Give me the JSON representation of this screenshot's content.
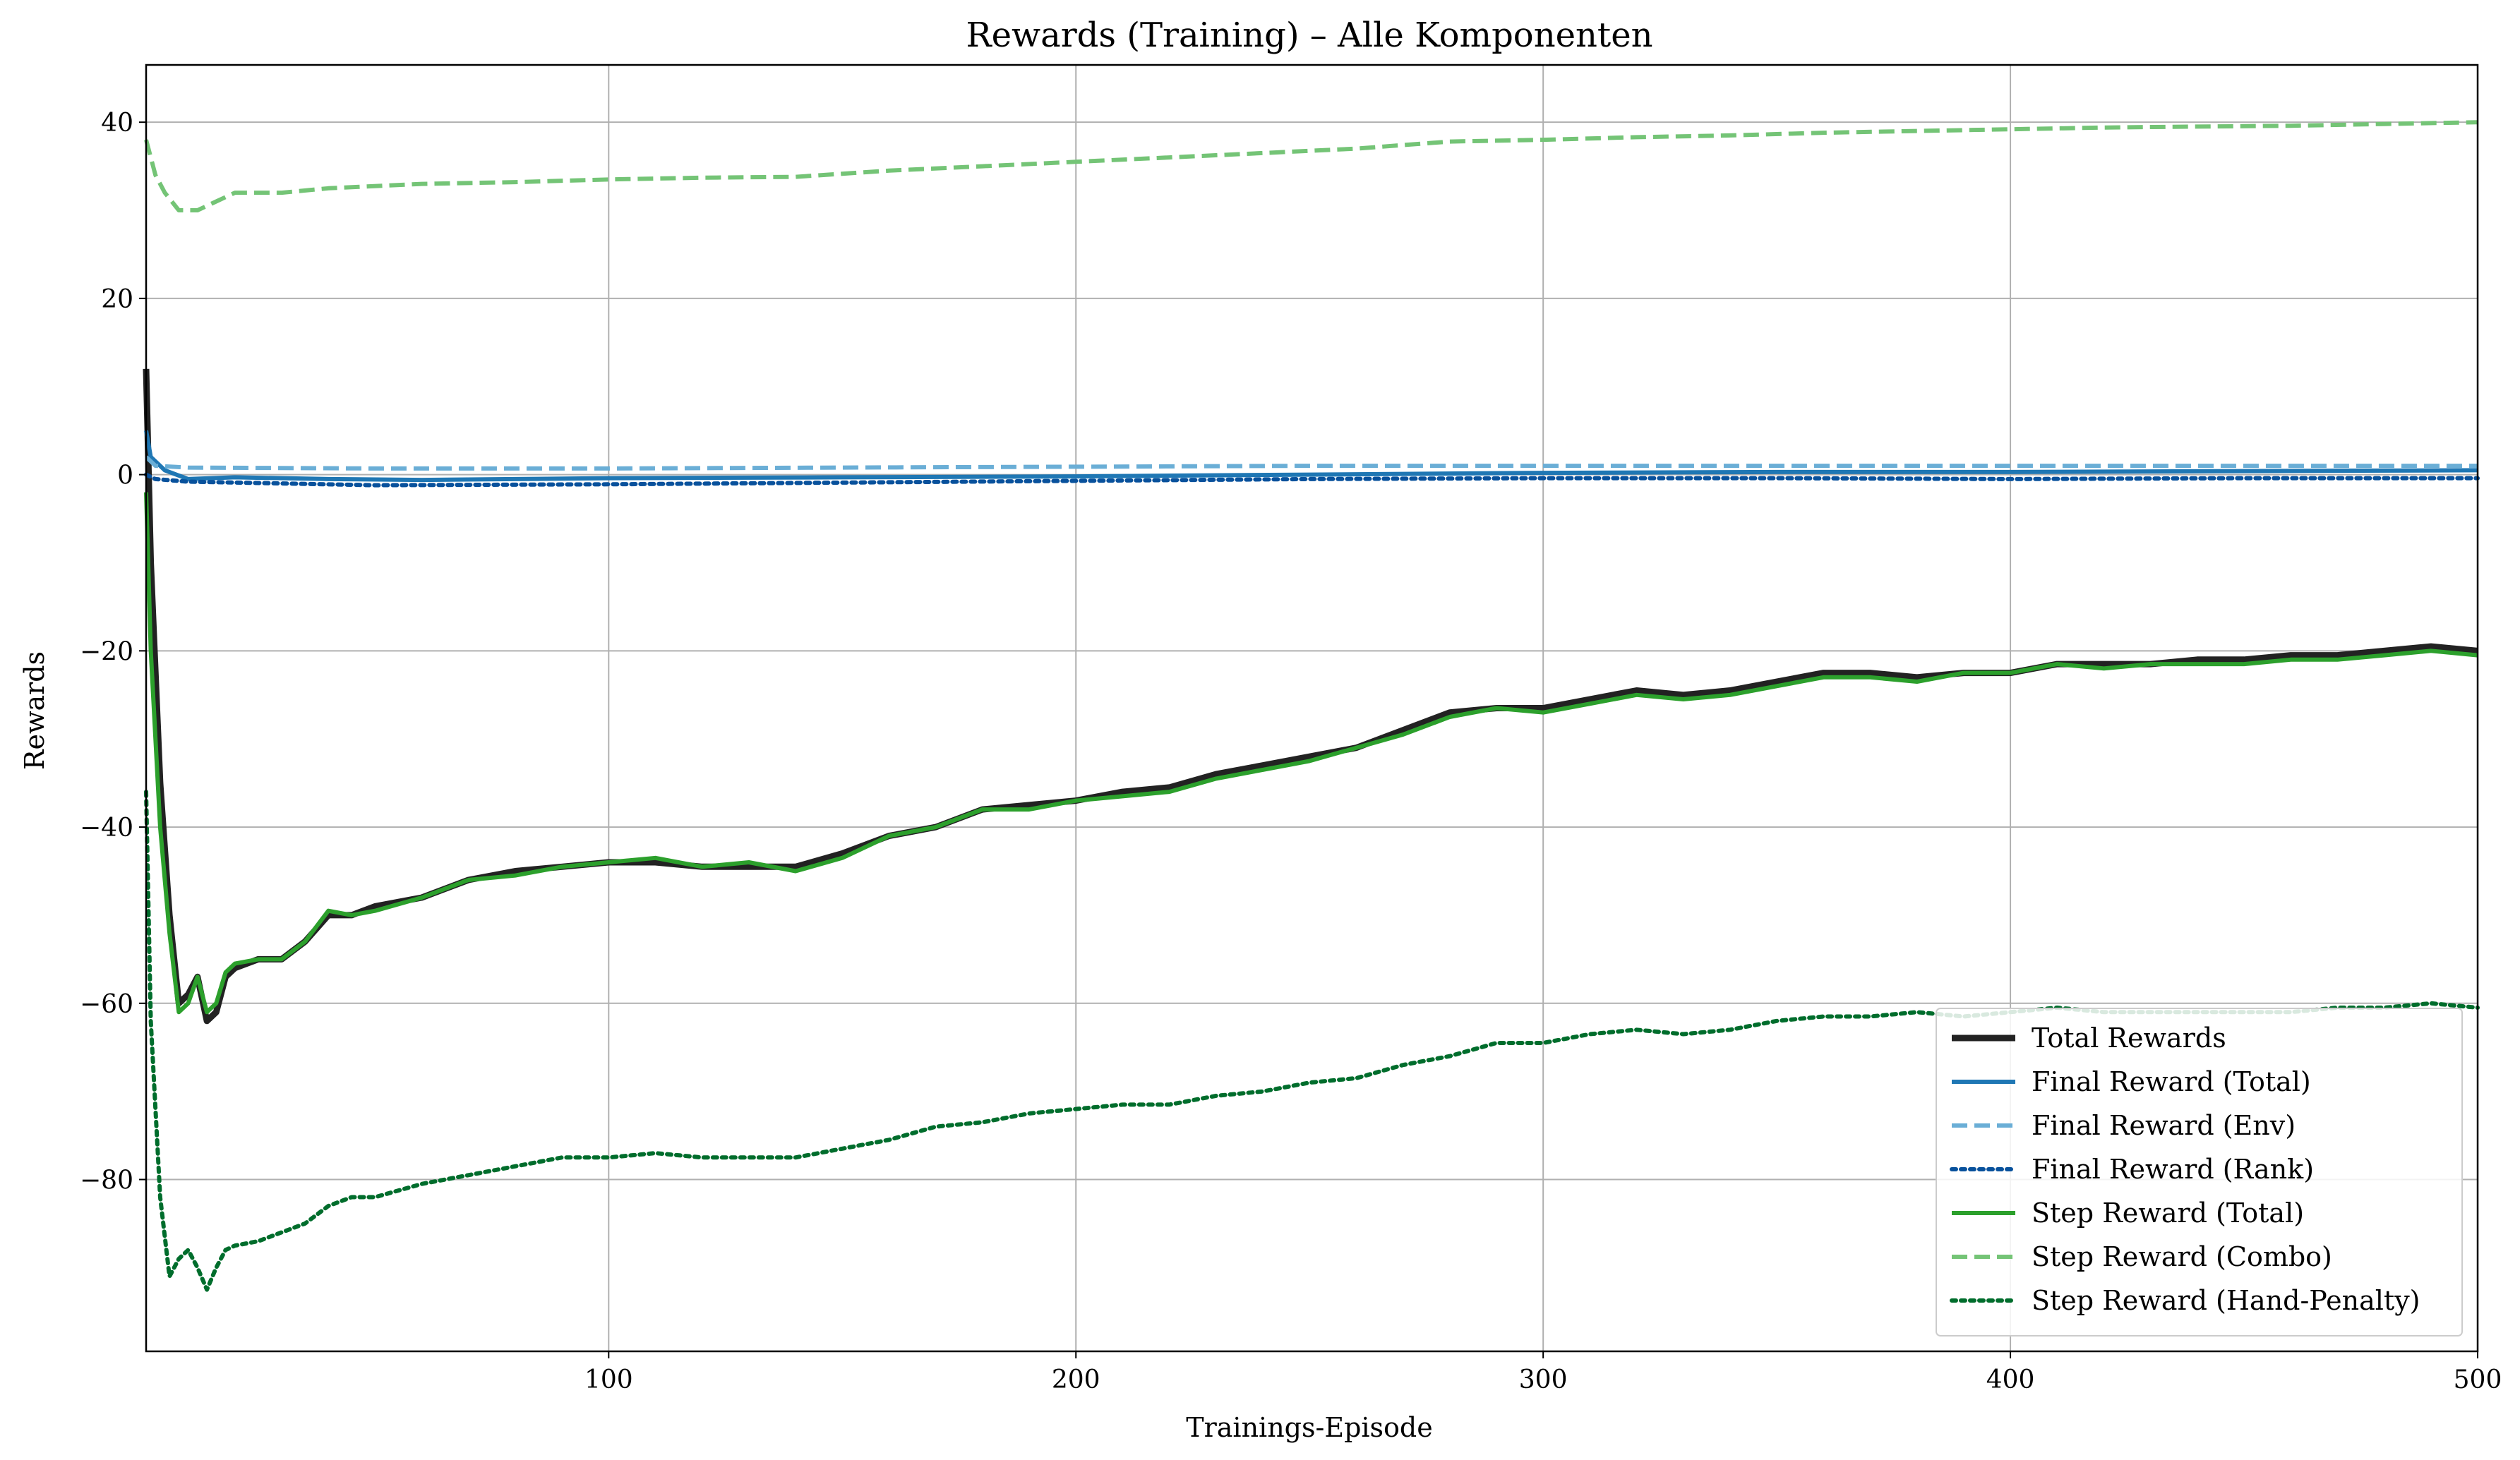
{
  "chart_data": {
    "type": "line",
    "title": "Rewards (Training) – Alle Komponenten",
    "xlabel": "Trainings-Episode",
    "ylabel": "Rewards",
    "xlim": [
      1,
      500
    ],
    "ylim": [
      -99.5,
      46.5
    ],
    "xticks": [
      100,
      200,
      300,
      400,
      500
    ],
    "yticks": [
      -80,
      -60,
      -40,
      -20,
      0,
      20,
      40
    ],
    "grid": true,
    "legend_position": "lower-right",
    "series": [
      {
        "name": "Total Rewards",
        "color": "#222222",
        "style": "solid",
        "width": "thick",
        "x": [
          1,
          2,
          4,
          6,
          8,
          10,
          12,
          14,
          16,
          18,
          20,
          25,
          30,
          35,
          40,
          45,
          50,
          60,
          70,
          80,
          90,
          100,
          110,
          120,
          130,
          140,
          150,
          160,
          170,
          180,
          190,
          200,
          210,
          220,
          230,
          240,
          250,
          260,
          270,
          280,
          290,
          300,
          310,
          320,
          330,
          340,
          350,
          360,
          370,
          380,
          390,
          400,
          410,
          420,
          430,
          440,
          450,
          460,
          470,
          480,
          490,
          500
        ],
        "values": [
          12,
          -10,
          -35,
          -50,
          -60,
          -59,
          -57,
          -62,
          -61,
          -57,
          -56,
          -55,
          -55,
          -53,
          -50,
          -50,
          -49,
          -48,
          -46,
          -45,
          -44.5,
          -44,
          -44,
          -44.5,
          -44.5,
          -44.5,
          -43,
          -41,
          -40,
          -38,
          -37.5,
          -37,
          -36,
          -35.5,
          -34,
          -33,
          -32,
          -31,
          -29,
          -27,
          -26.5,
          -26.5,
          -25.5,
          -24.5,
          -25,
          -24.5,
          -23.5,
          -22.5,
          -22.5,
          -23,
          -22.5,
          -22.5,
          -21.5,
          -21.5,
          -21.5,
          -21,
          -21,
          -20.5,
          -20.5,
          -20,
          -19.5,
          -20
        ]
      },
      {
        "name": "Final Reward (Total)",
        "color": "#1f77b4",
        "style": "solid",
        "width": "medium",
        "x": [
          1,
          2,
          5,
          10,
          20,
          40,
          60,
          80,
          100,
          150,
          200,
          250,
          300,
          350,
          400,
          450,
          500
        ],
        "values": [
          5,
          2,
          0.5,
          -0.5,
          -0.3,
          -0.5,
          -0.6,
          -0.5,
          -0.4,
          -0.3,
          -0.2,
          0,
          0.2,
          0.3,
          0.3,
          0.4,
          0.5
        ]
      },
      {
        "name": "Final Reward (Env)",
        "color": "#6aaed6",
        "style": "dashed",
        "width": "medium",
        "x": [
          1,
          3,
          10,
          50,
          100,
          150,
          200,
          250,
          300,
          350,
          400,
          450,
          500
        ],
        "values": [
          2,
          1,
          0.8,
          0.7,
          0.7,
          0.8,
          0.9,
          1,
          1,
          1,
          1,
          1,
          1
        ]
      },
      {
        "name": "Final Reward (Rank)",
        "color": "#08519c",
        "style": "dotted",
        "width": "medium",
        "x": [
          1,
          3,
          10,
          50,
          100,
          150,
          200,
          250,
          300,
          350,
          400,
          450,
          500
        ],
        "values": [
          0,
          -0.5,
          -0.8,
          -1.2,
          -1.1,
          -0.9,
          -0.7,
          -0.5,
          -0.4,
          -0.4,
          -0.5,
          -0.4,
          -0.4
        ]
      },
      {
        "name": "Step Reward (Total)",
        "color": "#2ca02c",
        "style": "solid",
        "width": "medium",
        "x": [
          1,
          2,
          4,
          6,
          8,
          10,
          12,
          14,
          16,
          18,
          20,
          25,
          30,
          35,
          40,
          45,
          50,
          60,
          70,
          80,
          90,
          100,
          110,
          120,
          130,
          140,
          150,
          160,
          170,
          180,
          190,
          200,
          210,
          220,
          230,
          240,
          250,
          260,
          270,
          280,
          290,
          300,
          310,
          320,
          330,
          340,
          350,
          360,
          370,
          380,
          390,
          400,
          410,
          420,
          430,
          440,
          450,
          460,
          470,
          480,
          490,
          500
        ],
        "values": [
          -2,
          -20,
          -40,
          -52,
          -61,
          -60,
          -57,
          -61,
          -60,
          -56.5,
          -55.5,
          -55,
          -55,
          -53,
          -49.5,
          -50,
          -49.5,
          -48,
          -46,
          -45.5,
          -44.5,
          -44,
          -43.5,
          -44.5,
          -44,
          -45,
          -43.5,
          -41,
          -40,
          -38,
          -38,
          -37,
          -36.5,
          -36,
          -34.5,
          -33.5,
          -32.5,
          -31,
          -29.5,
          -27.5,
          -26.5,
          -27,
          -26,
          -25,
          -25.5,
          -25,
          -24,
          -23,
          -23,
          -23.5,
          -22.5,
          -22.5,
          -21.5,
          -22,
          -21.5,
          -21.5,
          -21.5,
          -21,
          -21,
          -20.5,
          -20,
          -20.5
        ]
      },
      {
        "name": "Step Reward (Combo)",
        "color": "#74c476",
        "style": "dashed",
        "width": "medium",
        "x": [
          1,
          3,
          5,
          8,
          12,
          16,
          20,
          30,
          40,
          60,
          80,
          100,
          120,
          140,
          160,
          180,
          200,
          220,
          240,
          260,
          280,
          300,
          320,
          340,
          360,
          380,
          400,
          420,
          440,
          460,
          480,
          500
        ],
        "values": [
          38,
          34,
          32,
          30,
          30,
          31,
          32,
          32,
          32.5,
          33,
          33.2,
          33.5,
          33.7,
          33.8,
          34.5,
          35,
          35.5,
          36,
          36.5,
          37,
          37.8,
          38,
          38.3,
          38.5,
          38.8,
          39,
          39.2,
          39.4,
          39.5,
          39.6,
          39.8,
          40
        ]
      },
      {
        "name": "Step Reward (Hand-Penalty)",
        "color": "#006d2c",
        "style": "dotted",
        "width": "medium",
        "x": [
          1,
          2,
          4,
          6,
          8,
          10,
          12,
          14,
          16,
          18,
          20,
          25,
          30,
          35,
          40,
          45,
          50,
          60,
          70,
          80,
          90,
          100,
          110,
          120,
          130,
          140,
          150,
          160,
          170,
          180,
          190,
          200,
          210,
          220,
          230,
          240,
          250,
          260,
          270,
          280,
          290,
          300,
          310,
          320,
          330,
          340,
          350,
          360,
          370,
          380,
          390,
          400,
          410,
          420,
          430,
          440,
          450,
          460,
          470,
          480,
          490,
          500
        ],
        "values": [
          -36,
          -62,
          -82,
          -91,
          -89,
          -88,
          -90,
          -92.5,
          -90,
          -88,
          -87.5,
          -87,
          -86,
          -85,
          -83,
          -82,
          -82,
          -80.5,
          -79.5,
          -78.5,
          -77.5,
          -77.5,
          -77,
          -77.5,
          -77.5,
          -77.5,
          -76.5,
          -75.5,
          -74,
          -73.5,
          -72.5,
          -72,
          -71.5,
          -71.5,
          -70.5,
          -70,
          -69,
          -68.5,
          -67,
          -66,
          -64.5,
          -64.5,
          -63.5,
          -63,
          -63.5,
          -63,
          -62,
          -61.5,
          -61.5,
          -61,
          -61.5,
          -61,
          -60.5,
          -61,
          -61,
          -61,
          -61,
          -61,
          -60.5,
          -60.5,
          -60,
          -60.5
        ]
      }
    ]
  }
}
